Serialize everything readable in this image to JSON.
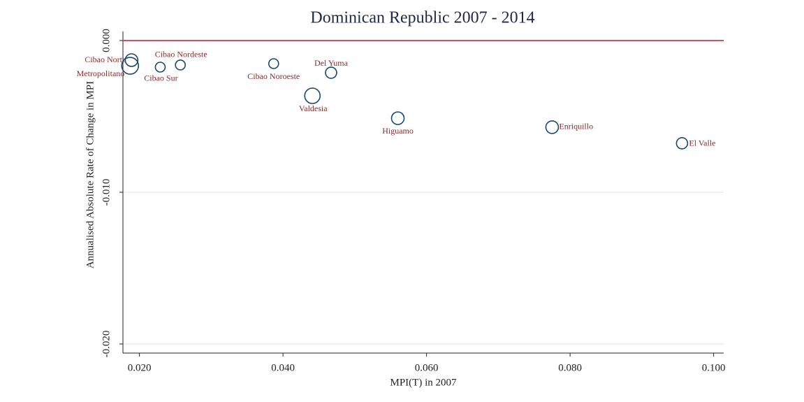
{
  "chart_data": {
    "type": "scatter",
    "title": "Dominican Republic 2007 - 2014",
    "x_label": "MPI(T) in 2007",
    "y_label": "Annualised Absolute Rate of Change in MPI",
    "labels": [
      "Cibao Norte",
      "Metropolitano",
      "Cibao Sur",
      "Cibao Nordeste",
      "Cibao Noroeste",
      "Del Yuma",
      "Valdesia",
      "Higuamo",
      "Enriquillo",
      "El Valle"
    ],
    "x": [
      0.0189,
      0.0187,
      0.0229,
      0.0257,
      0.0387,
      0.0467,
      0.0441,
      0.056,
      0.0775,
      0.0956
    ],
    "values": [
      -0.00129,
      -0.00166,
      -0.00175,
      -0.00161,
      -0.00152,
      -0.00212,
      -0.00364,
      -0.00512,
      -0.00571,
      -0.00677
    ],
    "sizes": [
      81,
      144,
      49,
      49,
      49,
      64,
      121,
      81,
      81,
      64
    ],
    "color": "#1a476f",
    "label_color": "#8b2a2a",
    "xlim": [
      0.0177,
      0.1014
    ],
    "ylim": [
      -0.0206,
      0.0006
    ],
    "xticks": [
      {
        "value": 0.02,
        "label": "0.020"
      },
      {
        "value": 0.04,
        "label": "0.040"
      },
      {
        "value": 0.06,
        "label": "0.060"
      },
      {
        "value": 0.08,
        "label": "0.080"
      },
      {
        "value": 0.1,
        "label": "0.100"
      }
    ],
    "yticks": [
      {
        "value": 0,
        "label": "0.000"
      },
      {
        "value": -0.01,
        "label": "-0.010"
      },
      {
        "value": -0.02,
        "label": "-0.020"
      }
    ],
    "grid": true,
    "reference_line": {
      "value": 0,
      "color": "#d94f5c"
    }
  }
}
